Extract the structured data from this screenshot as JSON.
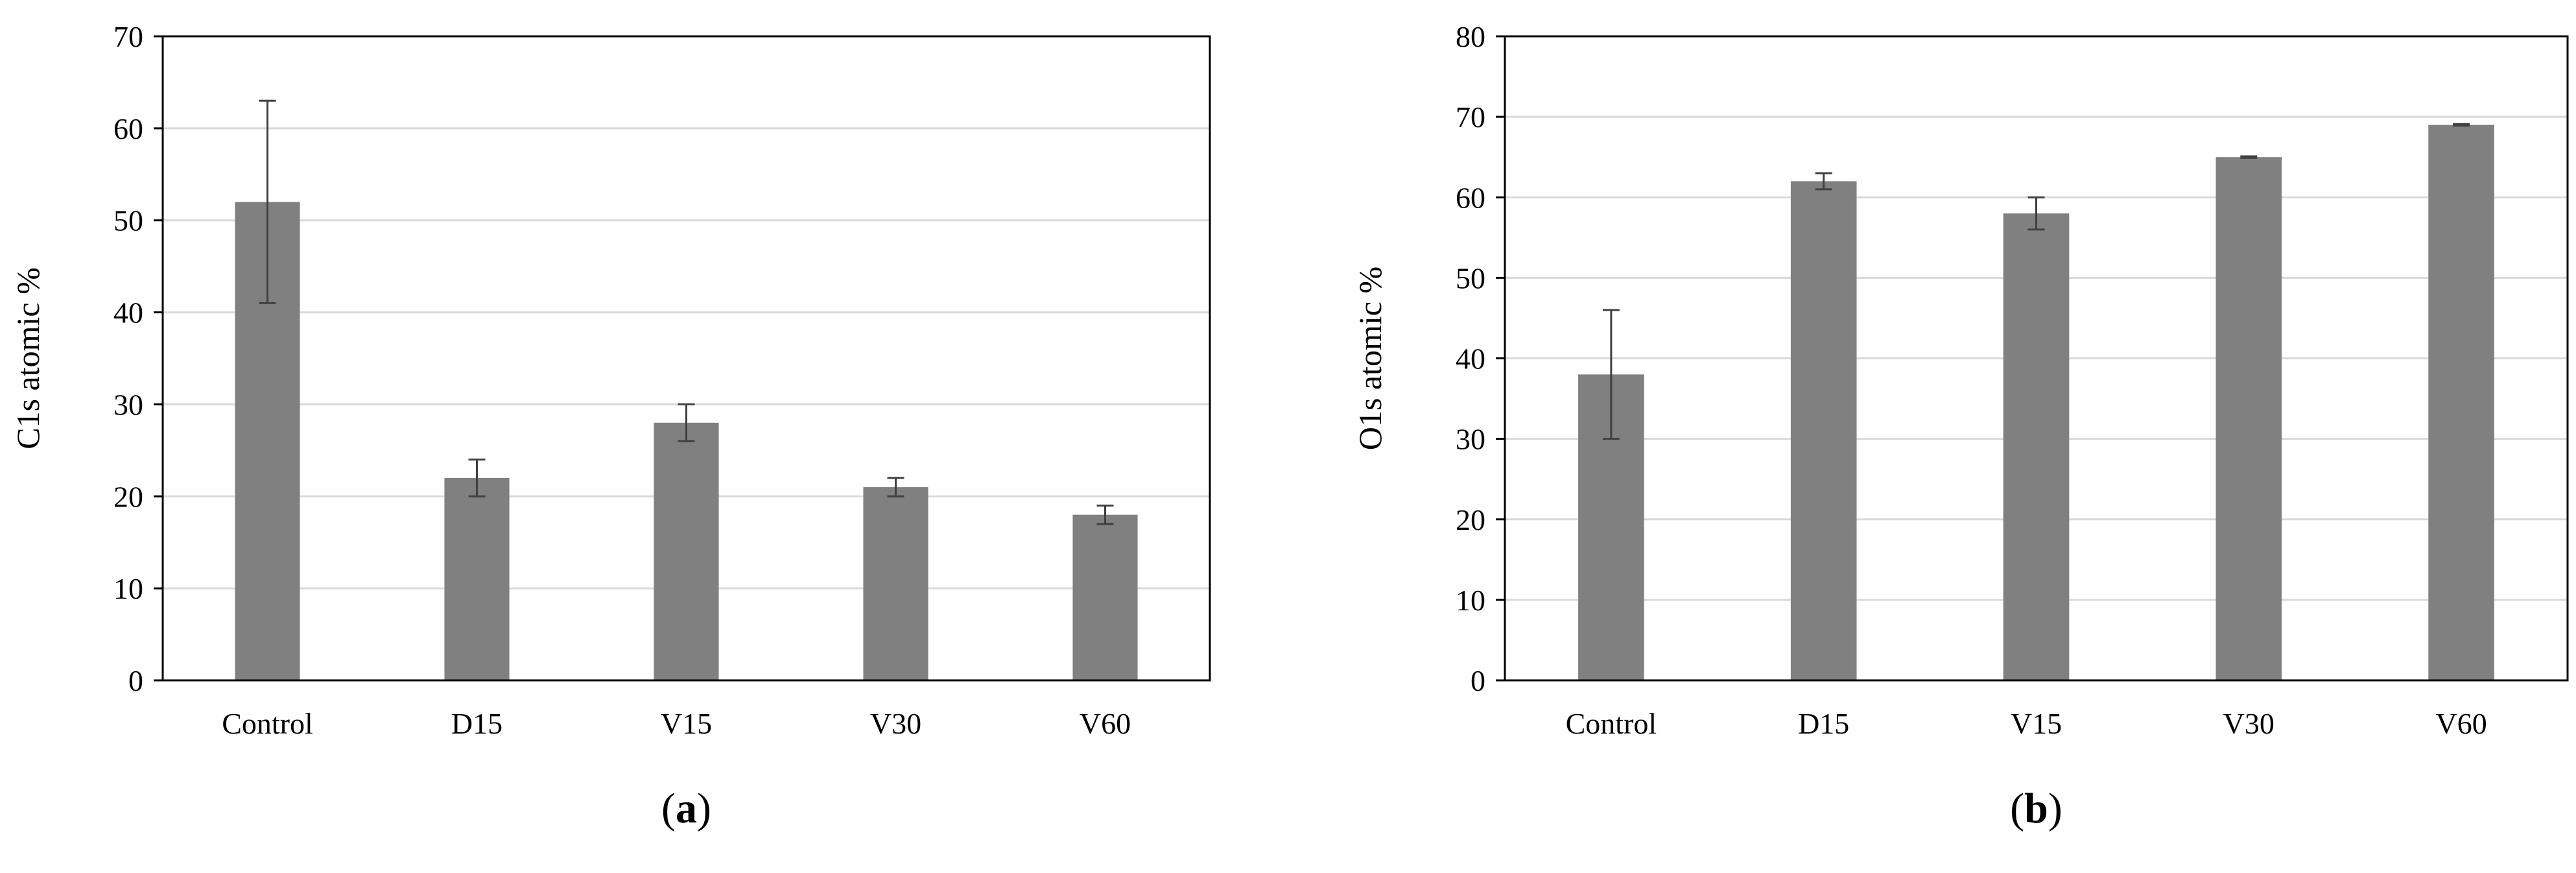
{
  "colors": {
    "bar": "#808080",
    "grid": "#d9d9d9",
    "axis": "#000000",
    "errorbar": "#404040"
  },
  "chart_data": [
    {
      "type": "bar",
      "panel": "(a)",
      "panel_letter": "a",
      "title": "",
      "xlabel": "",
      "ylabel": "C1s atomic %",
      "categories": [
        "Control",
        "D15",
        "V15",
        "V30",
        "V60"
      ],
      "series": [
        {
          "name": "C1s",
          "values": [
            52,
            22,
            28,
            21,
            18
          ],
          "errors": [
            11,
            2,
            2,
            1,
            1
          ]
        }
      ],
      "ylim": [
        0,
        70
      ],
      "ytick_step": 10,
      "yticks": [
        "0",
        "10",
        "20",
        "30",
        "40",
        "50",
        "60",
        "70"
      ],
      "grid": true
    },
    {
      "type": "bar",
      "panel": "(b)",
      "panel_letter": "b",
      "title": "",
      "xlabel": "",
      "ylabel": "O1s atomic %",
      "categories": [
        "Control",
        "D15",
        "V15",
        "V30",
        "V60"
      ],
      "series": [
        {
          "name": "O1s",
          "values": [
            38,
            62,
            58,
            65,
            69
          ],
          "errors": [
            8,
            1,
            2,
            0.1,
            0.1
          ]
        }
      ],
      "ylim": [
        0,
        80
      ],
      "ytick_step": 10,
      "yticks": [
        "0",
        "10",
        "20",
        "30",
        "40",
        "50",
        "60",
        "70",
        "80"
      ],
      "grid": true
    }
  ]
}
